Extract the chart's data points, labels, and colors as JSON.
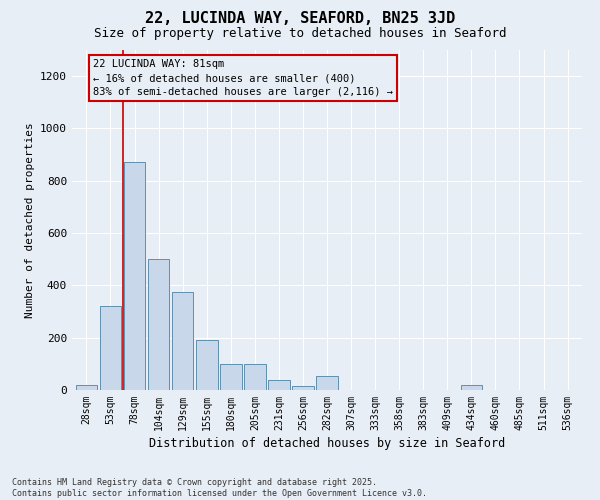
{
  "title1": "22, LUCINDA WAY, SEAFORD, BN25 3JD",
  "title2": "Size of property relative to detached houses in Seaford",
  "xlabel": "Distribution of detached houses by size in Seaford",
  "ylabel": "Number of detached properties",
  "bar_color": "#c8d8ea",
  "bar_edge_color": "#6090b0",
  "categories": [
    "28sqm",
    "53sqm",
    "78sqm",
    "104sqm",
    "129sqm",
    "155sqm",
    "180sqm",
    "205sqm",
    "231sqm",
    "256sqm",
    "282sqm",
    "307sqm",
    "333sqm",
    "358sqm",
    "383sqm",
    "409sqm",
    "434sqm",
    "460sqm",
    "485sqm",
    "511sqm",
    "536sqm"
  ],
  "values": [
    20,
    320,
    870,
    500,
    375,
    190,
    100,
    100,
    40,
    15,
    55,
    0,
    0,
    0,
    0,
    0,
    18,
    0,
    0,
    0,
    0
  ],
  "ylim": [
    0,
    1300
  ],
  "yticks": [
    0,
    200,
    400,
    600,
    800,
    1000,
    1200
  ],
  "vline_pos": 1.5,
  "annotation_line1": "22 LUCINDA WAY: 81sqm",
  "annotation_line2": "← 16% of detached houses are smaller (400)",
  "annotation_line3": "83% of semi-detached houses are larger (2,116) →",
  "annotation_color": "#cc0000",
  "vline_color": "#cc0000",
  "background_color": "#e8eef5",
  "footer1": "Contains HM Land Registry data © Crown copyright and database right 2025.",
  "footer2": "Contains public sector information licensed under the Open Government Licence v3.0."
}
